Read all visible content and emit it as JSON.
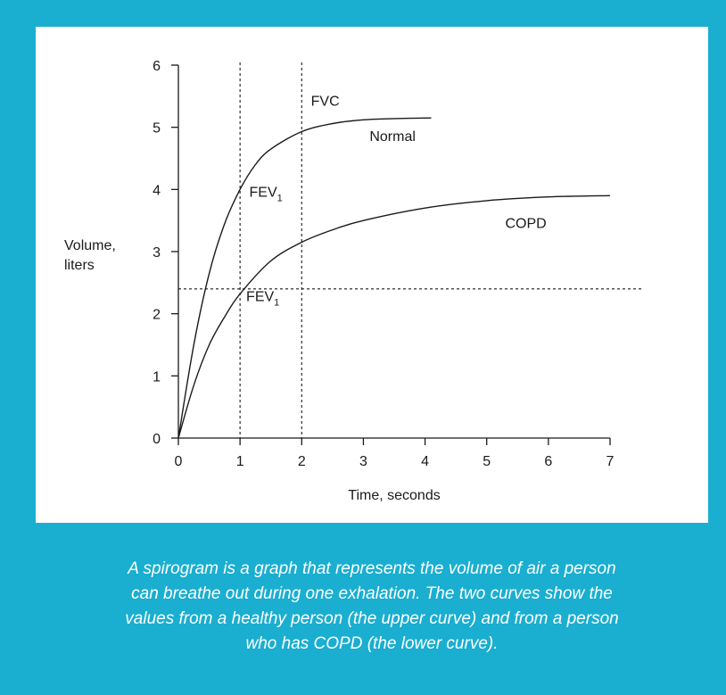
{
  "colors": {
    "background": "#1aaed0",
    "panel": "#ffffff",
    "ink": "#1a1a1a"
  },
  "chart_data": {
    "type": "line",
    "xlabel": "Time, seconds",
    "ylabel_lines": [
      "Volume,",
      "liters"
    ],
    "xlim": [
      0,
      7
    ],
    "ylim": [
      0,
      6
    ],
    "xticks": [
      0,
      1,
      2,
      3,
      4,
      5,
      6,
      7
    ],
    "yticks": [
      0,
      1,
      2,
      3,
      4,
      5,
      6
    ],
    "grid": false,
    "series": [
      {
        "name": "Normal",
        "x": [
          0,
          0.25,
          0.5,
          0.75,
          1,
          1.25,
          1.5,
          2,
          2.5,
          3,
          3.5,
          4.1
        ],
        "y": [
          0,
          1.5,
          2.65,
          3.45,
          4.0,
          4.4,
          4.65,
          4.93,
          5.06,
          5.12,
          5.14,
          5.15
        ]
      },
      {
        "name": "COPD",
        "x": [
          0,
          0.25,
          0.5,
          0.75,
          1,
          1.5,
          2,
          2.5,
          3,
          4,
          5,
          6,
          7
        ],
        "y": [
          0,
          0.85,
          1.5,
          1.95,
          2.32,
          2.85,
          3.15,
          3.35,
          3.5,
          3.7,
          3.82,
          3.88,
          3.9
        ]
      }
    ],
    "reference_lines": [
      {
        "orientation": "vertical",
        "value": 1
      },
      {
        "orientation": "vertical",
        "value": 2
      },
      {
        "orientation": "horizontal",
        "value": 2.4
      }
    ],
    "annotations": [
      {
        "text": "FVC",
        "x": 2.15,
        "y": 5.35
      },
      {
        "text": "Normal",
        "x": 3.1,
        "y": 4.78
      },
      {
        "text": "FEV",
        "subscript": "1",
        "x": 1.15,
        "y": 3.88
      },
      {
        "text": "COPD",
        "x": 5.3,
        "y": 3.38
      },
      {
        "text": "FEV",
        "subscript": "1",
        "x": 1.1,
        "y": 2.2
      }
    ]
  },
  "caption_lines": [
    "A spirogram is a graph that represents the volume of air a person",
    "can breathe out during one exhalation. The two curves show the",
    "values from a healthy person (the upper curve) and from a person",
    "who has COPD (the lower curve)."
  ]
}
